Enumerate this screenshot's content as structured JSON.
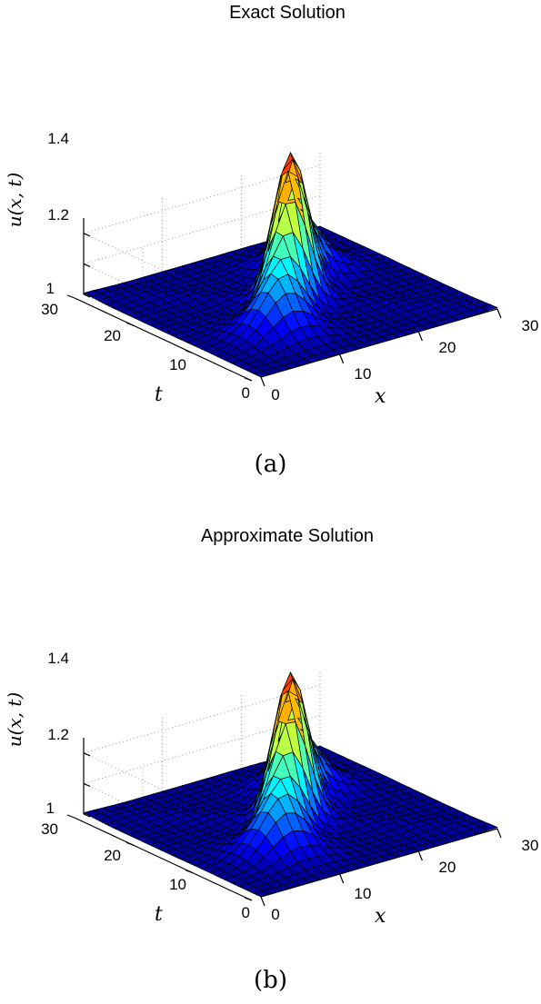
{
  "chart_data": [
    {
      "type": "surface",
      "title": "Exact Solution",
      "xlabel": "x",
      "ylabel": "t",
      "zlabel": "u(x, t)",
      "xlim": [
        0,
        30
      ],
      "ylim": [
        0,
        30
      ],
      "zlim": [
        1,
        1.5
      ],
      "x_ticks": [
        "0",
        "10",
        "20",
        "30"
      ],
      "y_ticks": [
        "0",
        "10",
        "20",
        "30"
      ],
      "z_ticks": [
        "1",
        "1.2",
        "1.4"
      ],
      "grid": true,
      "colormap": "jet",
      "caption": "(a)"
    },
    {
      "type": "surface",
      "title": "Approximate Solution",
      "xlabel": "x",
      "ylabel": "t",
      "zlabel": "u(x, t)",
      "xlim": [
        0,
        30
      ],
      "ylim": [
        0,
        30
      ],
      "zlim": [
        1,
        1.5
      ],
      "x_ticks": [
        "0",
        "10",
        "20",
        "30"
      ],
      "y_ticks": [
        "0",
        "10",
        "20",
        "30"
      ],
      "z_ticks": [
        "1",
        "1.2",
        "1.4"
      ],
      "grid": true,
      "colormap": "jet",
      "caption": "(b)"
    }
  ]
}
